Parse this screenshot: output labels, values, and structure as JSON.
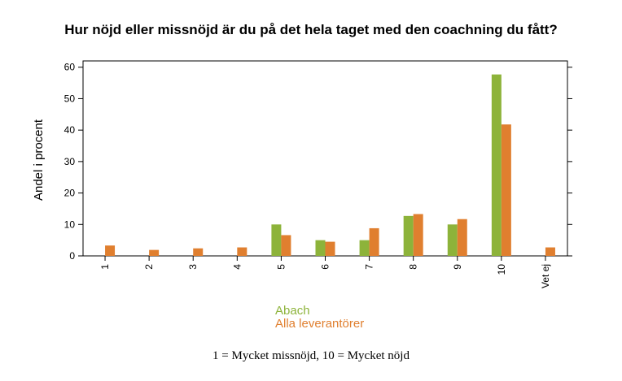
{
  "colors": {
    "series_1": "#8db33a",
    "series_2": "#e07f2f"
  },
  "chart_data": {
    "type": "bar",
    "title": "Hur nöjd eller missnöjd är du på det hela taget med den coachning du fått?",
    "ylabel": "Andel i procent",
    "xlabel": "",
    "categories": [
      "1",
      "2",
      "3",
      "4",
      "5",
      "6",
      "7",
      "8",
      "9",
      "10",
      "Vet ej"
    ],
    "ylim": [
      0,
      62
    ],
    "yticks": [
      0,
      10,
      20,
      30,
      40,
      50,
      60
    ],
    "grid": false,
    "legend_position": "bottom",
    "series": [
      {
        "name": "Abach",
        "values": [
          0,
          0,
          0,
          0,
          10.0,
          5.0,
          5.0,
          12.7,
          10.0,
          57.7,
          0
        ]
      },
      {
        "name": "Alla leverantörer",
        "values": [
          3.3,
          1.9,
          2.4,
          2.7,
          6.6,
          4.5,
          8.8,
          13.3,
          11.7,
          41.8,
          2.7
        ]
      }
    ],
    "footnote": "1 = Mycket missnöjd, 10 = Mycket nöjd"
  }
}
